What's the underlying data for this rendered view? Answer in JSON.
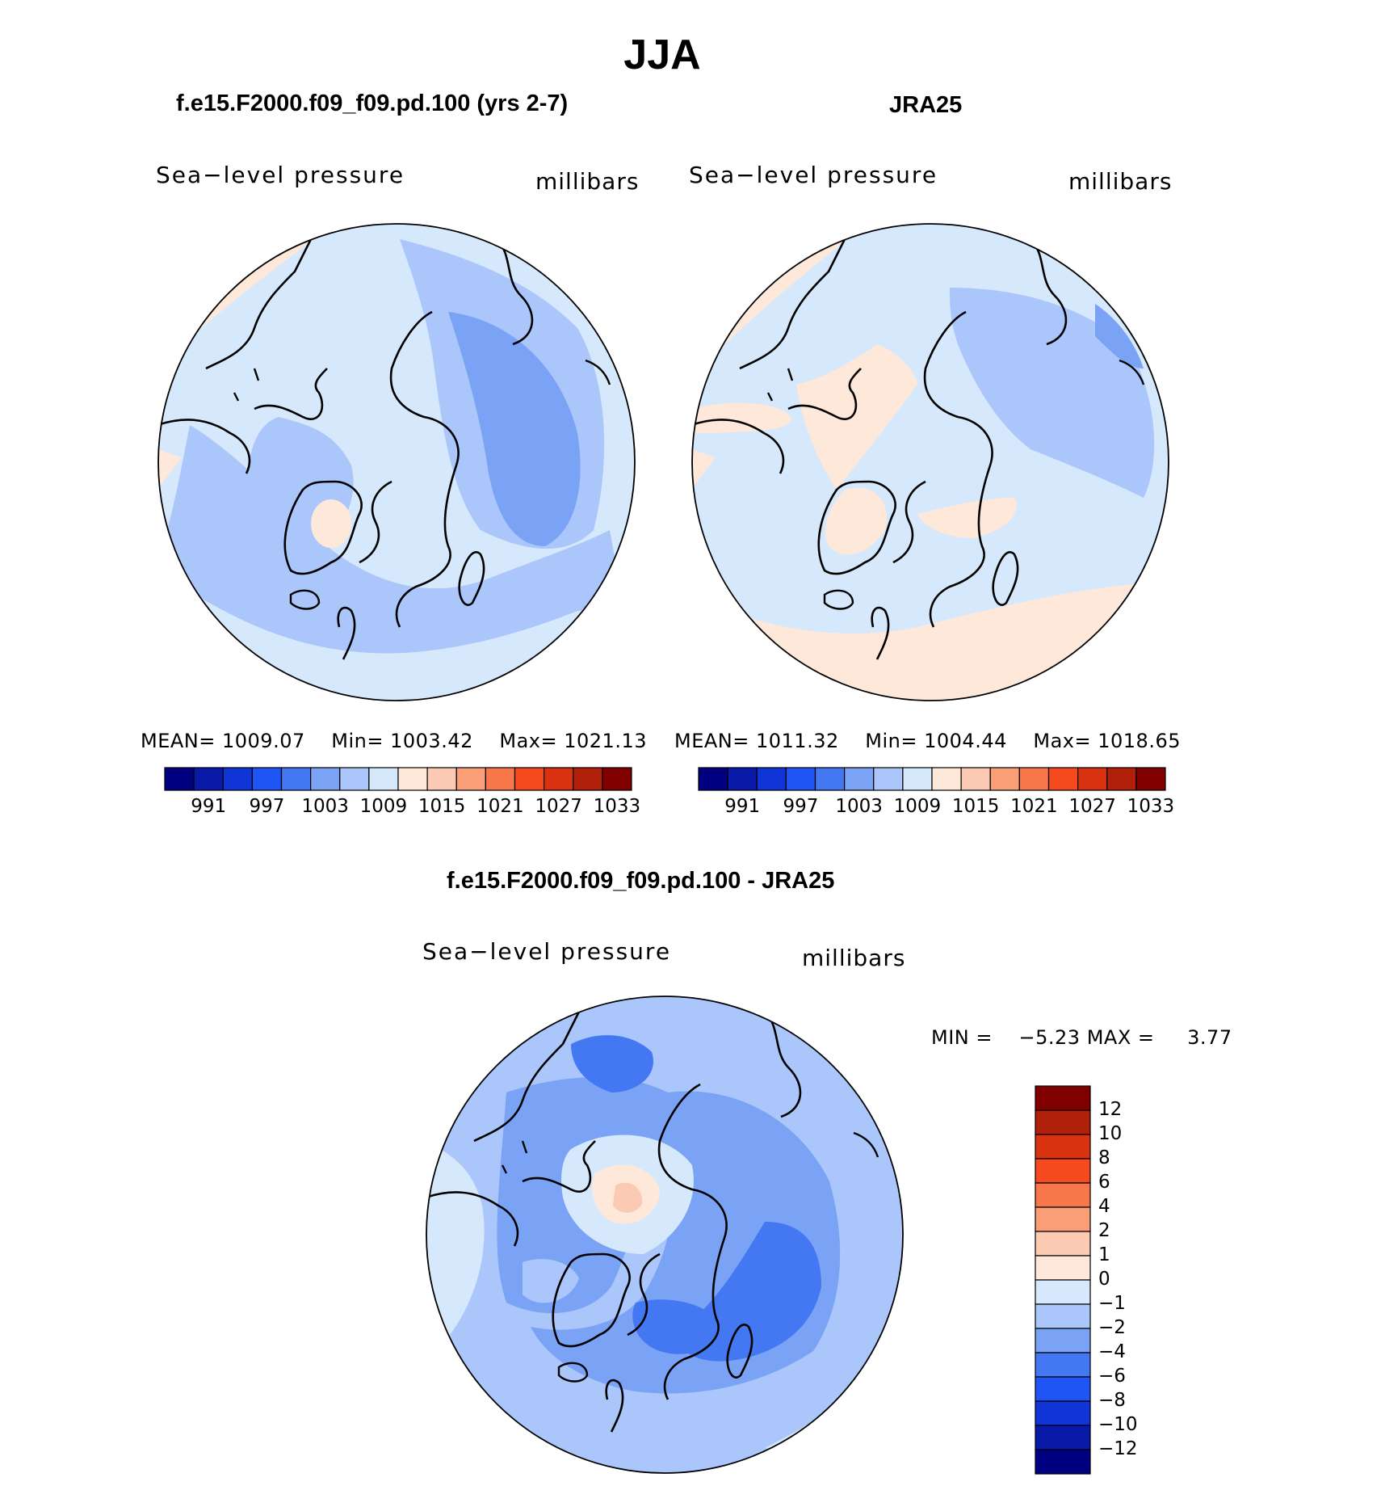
{
  "title": "JJA",
  "panels": [
    {
      "id": "model",
      "title": "f.e15.F2000.f09_f09.pd.100 (yrs 2-7)",
      "variable": "Sea−level pressure",
      "units": "millibars",
      "stats": {
        "mean_label": "MEAN=",
        "mean": "1009.07",
        "min_label": "Min=",
        "min": "1003.42",
        "max_label": "Max=",
        "max": "1021.13"
      }
    },
    {
      "id": "obs",
      "title": "JRA25",
      "variable": "Sea−level pressure",
      "units": "millibars",
      "stats": {
        "mean_label": "MEAN=",
        "mean": "1011.32",
        "min_label": "Min=",
        "min": "1004.44",
        "max_label": "Max=",
        "max": "1018.65"
      }
    },
    {
      "id": "diff",
      "title": "f.e15.F2000.f09_f09.pd.100 - JRA25",
      "variable": "Sea−level pressure",
      "units": "millibars",
      "stats": {
        "min_label": "MIN =",
        "min": "−5.23",
        "max_label": "MAX =",
        "max": "3.77"
      }
    }
  ],
  "colorbar_abs": {
    "labels": [
      "991",
      "997",
      "1003",
      "1009",
      "1015",
      "1021",
      "1027",
      "1033"
    ],
    "colors": [
      "#000080",
      "#0a1aa8",
      "#0f35d6",
      "#1f55f5",
      "#4478f2",
      "#7aa2f5",
      "#abc6fa",
      "#d6e8fb",
      "#fde8da",
      "#fccab3",
      "#fa9e78",
      "#f8774a",
      "#f44a1e",
      "#d93210",
      "#b0200a",
      "#800000"
    ]
  },
  "colorbar_diff": {
    "labels": [
      "12",
      "10",
      "8",
      "6",
      "4",
      "2",
      "1",
      "0",
      "−1",
      "−2",
      "−4",
      "−6",
      "−8",
      "−10",
      "−12"
    ],
    "colors": [
      "#800000",
      "#b0200a",
      "#d93210",
      "#f44a1e",
      "#f8774a",
      "#fa9e78",
      "#fccab3",
      "#fde8da",
      "#d6e8fb",
      "#abc6fa",
      "#7aa2f5",
      "#4478f2",
      "#1f55f5",
      "#0f35d6",
      "#0a1aa8",
      "#000080"
    ]
  }
}
